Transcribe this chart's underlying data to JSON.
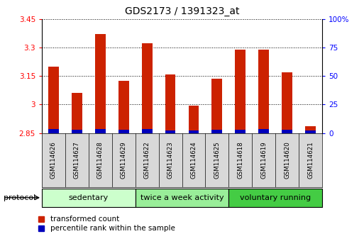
{
  "title": "GDS2173 / 1391323_at",
  "samples": [
    "GSM114626",
    "GSM114627",
    "GSM114628",
    "GSM114629",
    "GSM114622",
    "GSM114623",
    "GSM114624",
    "GSM114625",
    "GSM114618",
    "GSM114619",
    "GSM114620",
    "GSM114621"
  ],
  "red_values": [
    3.2,
    3.06,
    3.37,
    3.125,
    3.32,
    3.157,
    2.995,
    3.135,
    3.29,
    3.29,
    3.17,
    2.885
  ],
  "blue_values": [
    0.022,
    0.016,
    0.02,
    0.016,
    0.02,
    0.012,
    0.012,
    0.018,
    0.018,
    0.02,
    0.018,
    0.014
  ],
  "baseline": 2.85,
  "ylim": [
    2.85,
    3.45
  ],
  "y_ticks": [
    2.85,
    3.0,
    3.15,
    3.3,
    3.45
  ],
  "y_tick_labels": [
    "2.85",
    "3",
    "3.15",
    "3.3",
    "3.45"
  ],
  "right_ylim": [
    0,
    100
  ],
  "right_yticks": [
    0,
    25,
    50,
    75,
    100
  ],
  "right_yticklabels": [
    "0",
    "25",
    "50",
    "75",
    "100%"
  ],
  "groups": [
    {
      "label": "sedentary",
      "start": 0,
      "end": 4,
      "color": "#ccffcc"
    },
    {
      "label": "twice a week activity",
      "start": 4,
      "end": 8,
      "color": "#99ee99"
    },
    {
      "label": "voluntary running",
      "start": 8,
      "end": 12,
      "color": "#44cc44"
    }
  ],
  "protocol_label": "protocol",
  "legend_red": "transformed count",
  "legend_blue": "percentile rank within the sample",
  "bar_color_red": "#cc2200",
  "bar_color_blue": "#0000bb",
  "bar_width": 0.45,
  "axis_bg": "#ffffff",
  "label_box_bg": "#d8d8d8"
}
